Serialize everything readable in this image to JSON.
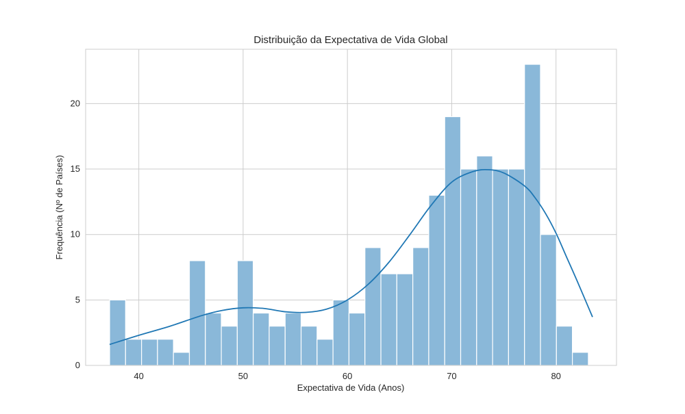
{
  "chart_data": {
    "type": "bar",
    "title": "Distribuição da Expectativa de Vida Global",
    "xlabel": "Expectativa de Vida (Anos)",
    "ylabel": "Frequência (Nº de Países)",
    "xlim": [
      34.9,
      85.8
    ],
    "ylim": [
      0,
      24.15
    ],
    "x_ticks": [
      40,
      50,
      60,
      70,
      80
    ],
    "y_ticks": [
      0,
      5,
      10,
      15,
      20
    ],
    "grid": true,
    "colors": {
      "bar_fill": "#8ab8d9",
      "bar_edge": "#ffffff",
      "kde_line": "#1f77b4",
      "grid": "#cccccc",
      "axes_edge": "#cccccc"
    },
    "histogram": {
      "bin_start": 37.2,
      "bin_width": 1.53,
      "counts": [
        5,
        2,
        2,
        2,
        1,
        8,
        4,
        3,
        8,
        4,
        3,
        4,
        3,
        2,
        5,
        4,
        9,
        7,
        7,
        9,
        13,
        19,
        15,
        16,
        15,
        15,
        23,
        10,
        3,
        1
      ]
    },
    "kde_curve": {
      "x": [
        37.2,
        40,
        43,
        46,
        48,
        50,
        52,
        54,
        56,
        58,
        60,
        62,
        64,
        66,
        68,
        70,
        72,
        73.5,
        75,
        77,
        78,
        79,
        80,
        81,
        82,
        83.5
      ],
      "y": [
        1.6,
        2.3,
        3.0,
        3.8,
        4.2,
        4.4,
        4.35,
        4.1,
        4.05,
        4.3,
        5.0,
        6.2,
        7.9,
        10.0,
        12.2,
        14.0,
        14.8,
        14.95,
        14.7,
        13.7,
        12.8,
        11.6,
        10.1,
        8.3,
        6.5,
        3.7
      ]
    }
  }
}
